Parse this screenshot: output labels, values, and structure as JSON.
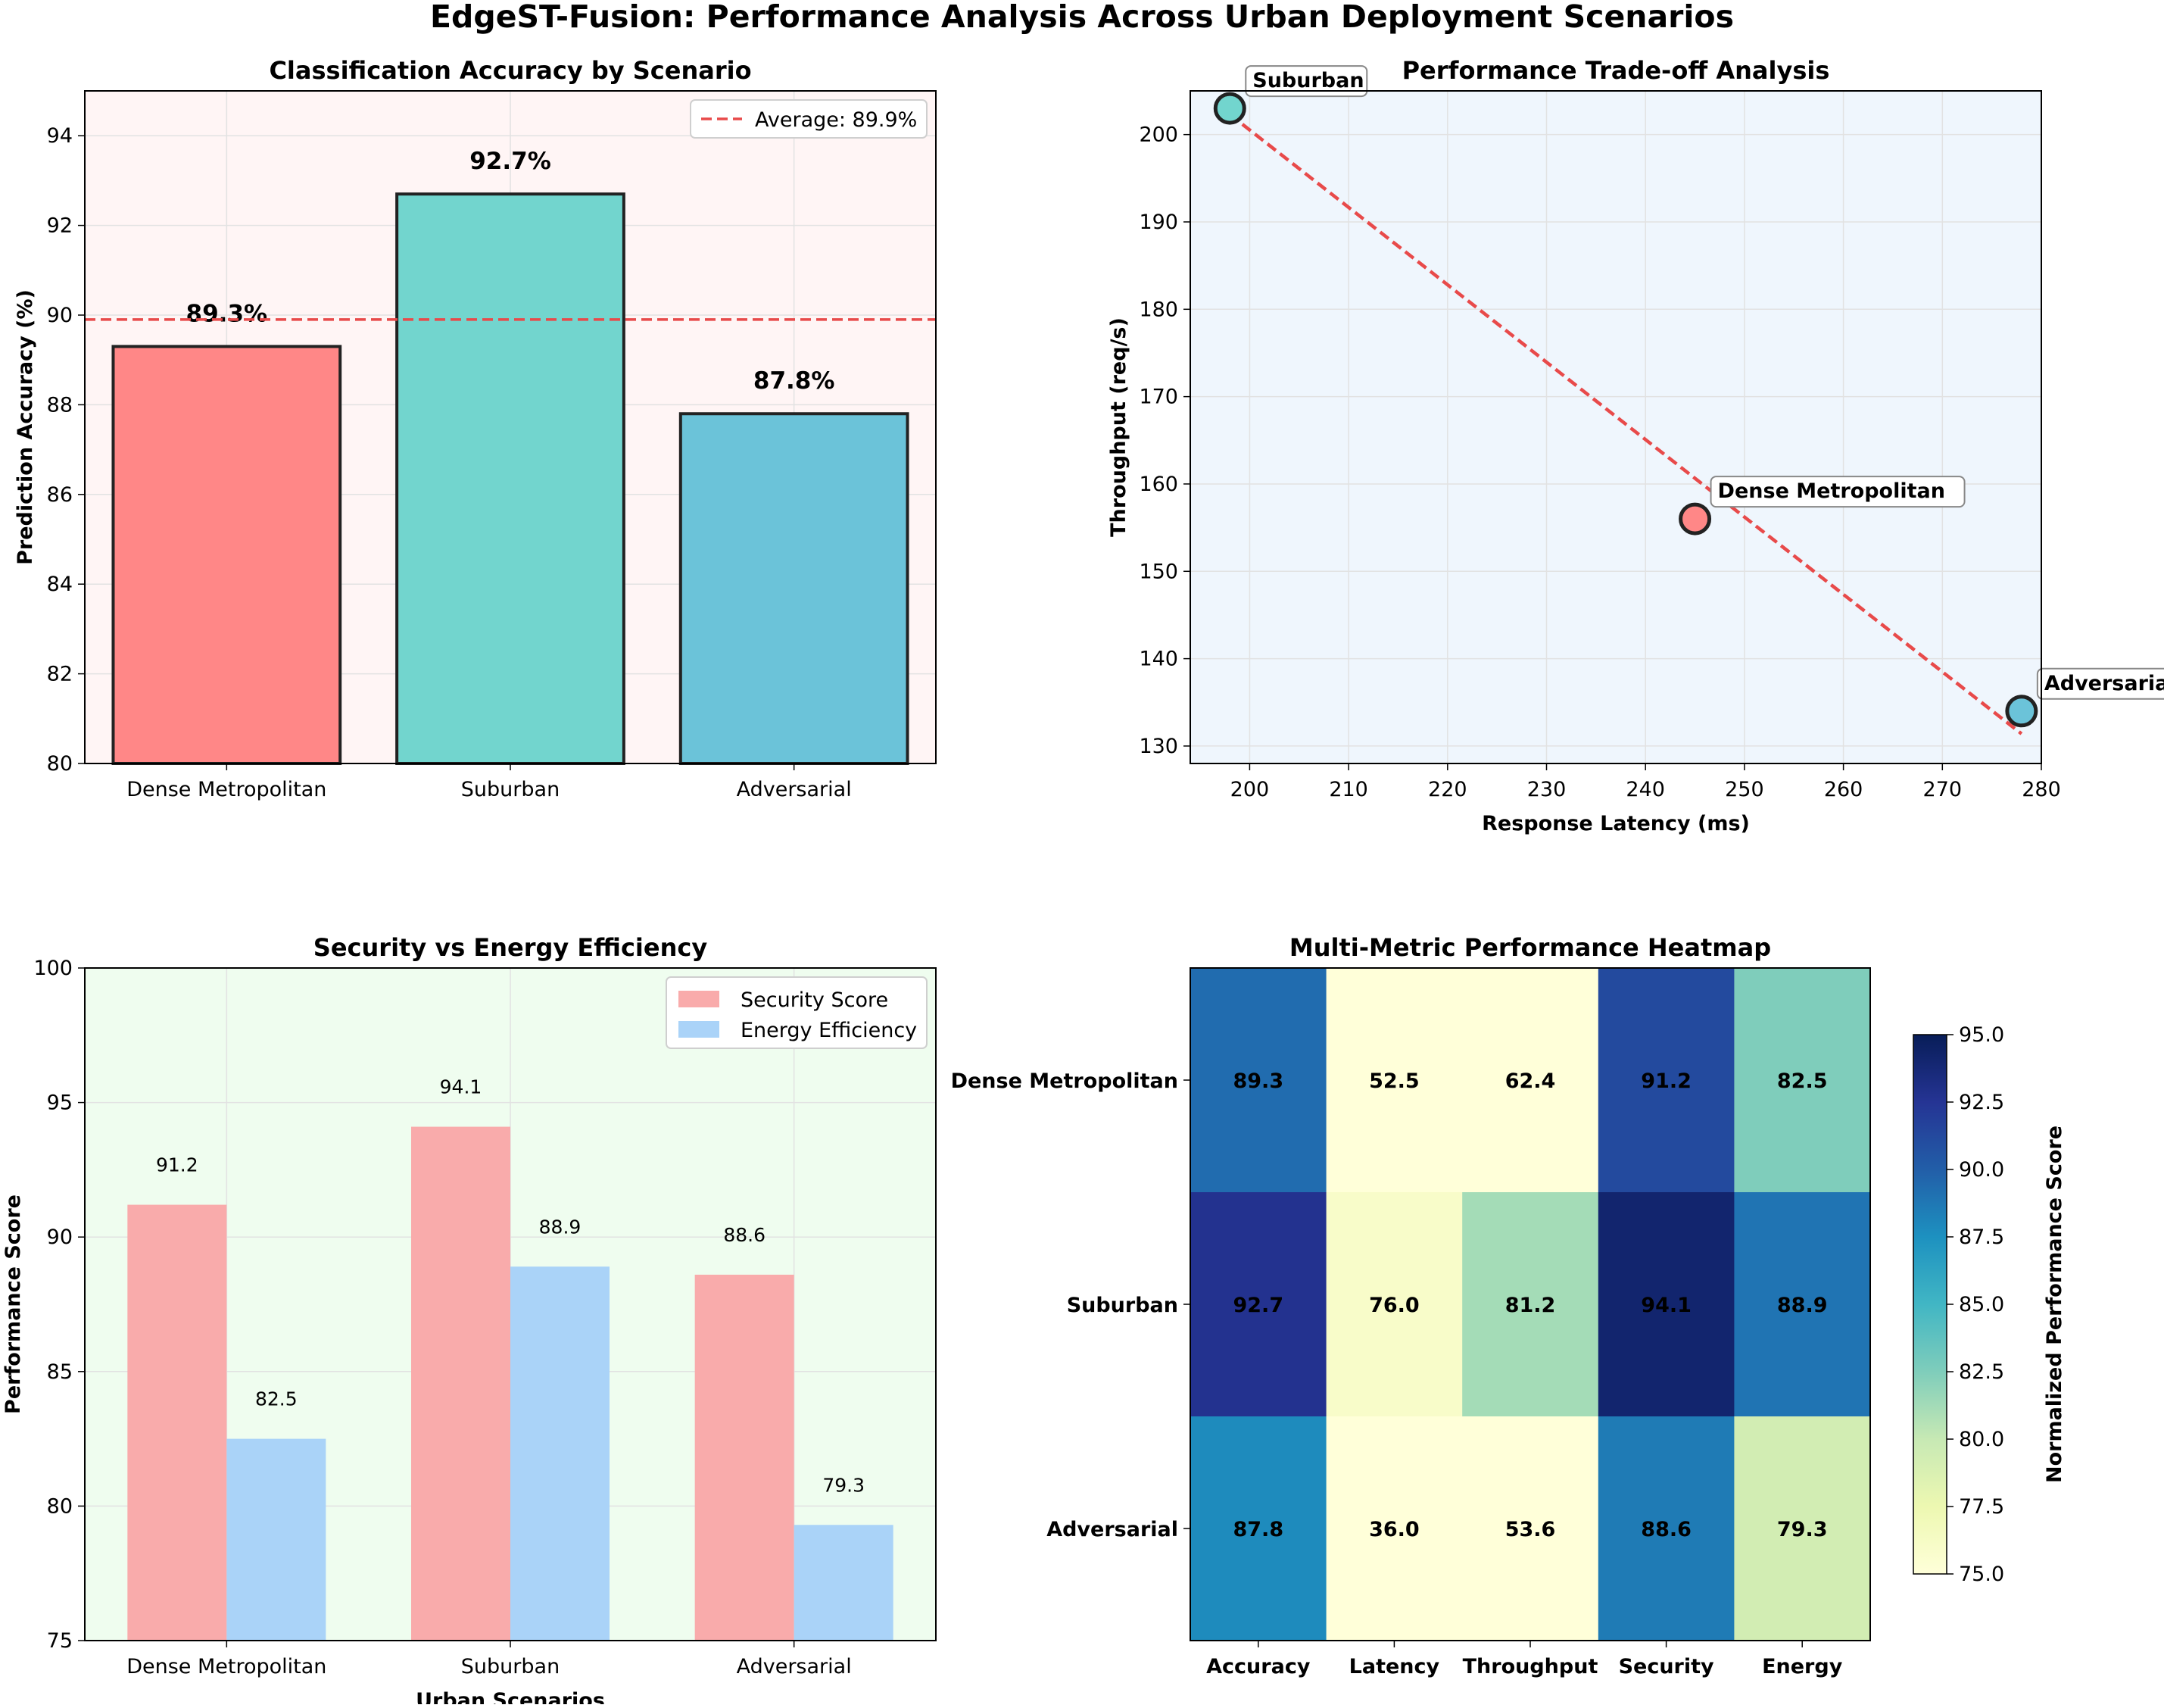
{
  "suptitle": "EdgeST-Fusion: Performance Analysis Across Urban Deployment Scenarios",
  "chart_data": [
    {
      "type": "bar",
      "title": "Classification Accuracy by Scenario",
      "categories": [
        "Dense Metropolitan",
        "Suburban",
        "Adversarial"
      ],
      "values": [
        89.3,
        92.7,
        87.8
      ],
      "value_labels": [
        "89.3%",
        "92.7%",
        "87.8%"
      ],
      "colors": [
        "#FF8787",
        "#72D5CE",
        "#6BC3D9"
      ],
      "xlabel": "",
      "ylabel": "Prediction Accuracy (%)",
      "ylim": [
        80,
        95
      ],
      "yticks": [
        80,
        82,
        84,
        86,
        88,
        90,
        92,
        94
      ],
      "reference_line": {
        "value": 89.9,
        "label": "Average: 89.9%",
        "color": "#E84A4A"
      },
      "legend_position": "top-right",
      "background": "#FFF5F5",
      "grid": true
    },
    {
      "type": "scatter",
      "title": "Performance Trade-off Analysis",
      "points": [
        {
          "label": "Dense Metropolitan",
          "x": 245,
          "y": 156,
          "color": "#FF8787"
        },
        {
          "label": "Suburban",
          "x": 198,
          "y": 203,
          "color": "#72D5CE"
        },
        {
          "label": "Adversarial",
          "x": 278,
          "y": 134,
          "color": "#6BC3D9"
        }
      ],
      "trend_line": {
        "x": [
          198,
          278
        ],
        "y": [
          202.3,
          131.4
        ],
        "color": "#E84A4A"
      },
      "xlabel": "Response Latency (ms)",
      "ylabel": "Throughput (req/s)",
      "xlim": [
        194,
        280
      ],
      "ylim": [
        128,
        205
      ],
      "xticks": [
        200,
        210,
        220,
        230,
        240,
        250,
        260,
        270,
        280
      ],
      "yticks": [
        130,
        140,
        150,
        160,
        170,
        180,
        190,
        200
      ],
      "background": "#EFF6FD",
      "grid": true
    },
    {
      "type": "bar",
      "title": "Security vs Energy Efficiency",
      "categories": [
        "Dense Metropolitan",
        "Suburban",
        "Adversarial"
      ],
      "series": [
        {
          "name": "Security Score",
          "values": [
            91.2,
            94.1,
            88.6
          ],
          "labels": [
            "91.2",
            "94.1",
            "88.6"
          ],
          "color": "#F9ABAB"
        },
        {
          "name": "Energy Efficiency",
          "values": [
            82.5,
            88.9,
            79.3
          ],
          "labels": [
            "82.5",
            "88.9",
            "79.3"
          ],
          "color": "#AAD3F8"
        }
      ],
      "xlabel": "Urban Scenarios",
      "ylabel": "Performance Score",
      "ylim": [
        75,
        100
      ],
      "yticks": [
        75,
        80,
        85,
        90,
        95,
        100
      ],
      "legend_position": "top-right",
      "background": "#EFFDEF",
      "grid": true
    },
    {
      "type": "heatmap",
      "title": "Multi-Metric Performance Heatmap",
      "rows": [
        "Dense Metropolitan",
        "Suburban",
        "Adversarial"
      ],
      "columns": [
        "Accuracy",
        "Latency",
        "Throughput",
        "Security",
        "Energy"
      ],
      "values": [
        [
          89.3,
          52.5,
          62.4,
          91.2,
          82.5
        ],
        [
          92.7,
          76.0,
          81.2,
          94.1,
          88.9
        ],
        [
          87.8,
          36.0,
          53.6,
          88.6,
          79.3
        ]
      ],
      "cell_labels": [
        [
          "89.3",
          "52.5",
          "62.4",
          "91.2",
          "82.5"
        ],
        [
          "92.7",
          "76.0",
          "81.2",
          "94.1",
          "88.9"
        ],
        [
          "87.8",
          "36.0",
          "53.6",
          "88.6",
          "79.3"
        ]
      ],
      "colormap": "YlGnBu",
      "vmin": 75,
      "vmax": 95,
      "colorbar_label": "Normalized Performance Score",
      "colorbar_ticks": [
        "75.0",
        "77.5",
        "80.0",
        "82.5",
        "85.0",
        "87.5",
        "90.0",
        "92.5",
        "95.0"
      ]
    }
  ]
}
